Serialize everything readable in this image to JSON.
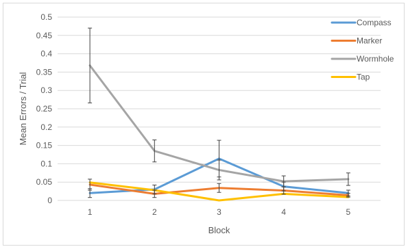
{
  "chart_data": {
    "type": "line",
    "title": "",
    "xlabel": "Block",
    "ylabel": "Mean Errors / Trial",
    "x": [
      1,
      2,
      3,
      4,
      5
    ],
    "x_tick_labels": [
      "1",
      "2",
      "3",
      "4",
      "5"
    ],
    "ylim": [
      0,
      0.5
    ],
    "y_ticks": [
      0,
      0.05,
      0.1,
      0.15,
      0.2,
      0.25,
      0.3,
      0.35,
      0.4,
      0.45,
      0.5
    ],
    "y_tick_labels": [
      "0",
      "0.05",
      "0.1",
      "0.15",
      "0.2",
      "0.25",
      "0.3",
      "0.35",
      "0.4",
      "0.45",
      "0.5"
    ],
    "grid": "horizontal",
    "legend_position": "top-right",
    "series": [
      {
        "name": "Compass",
        "color": "#5B9BD5",
        "values": [
          0.02,
          0.03,
          0.114,
          0.038,
          0.02
        ],
        "error_bars": [
          0.012,
          0.012,
          0.05,
          0.012,
          0.008
        ]
      },
      {
        "name": "Marker",
        "color": "#ED7D31",
        "values": [
          0.043,
          0.018,
          0.034,
          0.027,
          0.014
        ],
        "error_bars": [
          0.015,
          0.01,
          0.012,
          0.01,
          0.005
        ]
      },
      {
        "name": "Wormhole",
        "color": "#A5A5A5",
        "values": [
          0.368,
          0.135,
          0.083,
          0.052,
          0.058
        ],
        "error_bars": [
          0.102,
          0.03,
          0.027,
          0.015,
          0.017
        ]
      },
      {
        "name": "Tap",
        "color": "#FFC000",
        "values": [
          0.049,
          0.028,
          0.0,
          0.018,
          0.009
        ],
        "error_bars": [
          0.0,
          0.0,
          0.0,
          0.0,
          0.0
        ]
      }
    ]
  }
}
